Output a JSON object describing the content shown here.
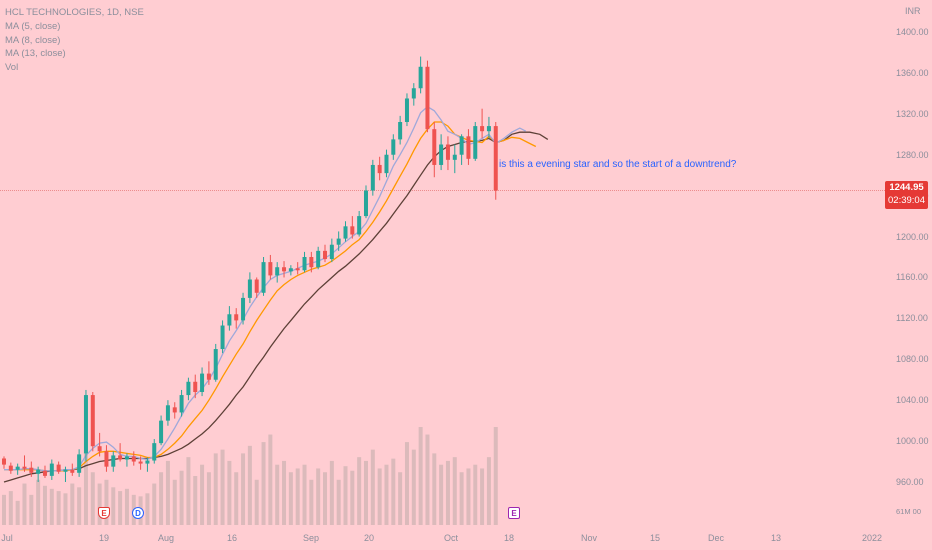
{
  "legend": {
    "symbol": "HCL TECHNOLOGIES, 1D, NSE",
    "ma1": "MA (5, close)",
    "ma2": "MA (8, close)",
    "ma3": "MA (13, close)",
    "vol": "Vol"
  },
  "annotation": "is this a evening star and so the start of a downtrend?",
  "price_axis": {
    "title": "INR",
    "ticks": [
      "1400.00",
      "1360.00",
      "1320.00",
      "1280.00",
      "1240.00",
      "1200.00",
      "1160.00",
      "1120.00",
      "1080.00",
      "1040.00",
      "1000.00",
      "960.00"
    ],
    "last_price": "1244.95",
    "countdown": "02:39:04"
  },
  "volume_axis_label": "61M 00",
  "time_axis": [
    "Jul",
    "19",
    "Aug",
    "16",
    "Sep",
    "20",
    "Oct",
    "18",
    "Nov",
    "15",
    "Dec",
    "13",
    "2022"
  ],
  "events": {
    "e1": "E",
    "d": "D",
    "e2": "E"
  },
  "colors": {
    "background": "#ffcdd2",
    "up_candle": "#26a69a",
    "down_candle": "#ef5350",
    "ma5": "#9fa8da",
    "ma8": "#ff9800",
    "ma13": "#5d4037",
    "volume": "#d7b8b8"
  },
  "chart_data": {
    "type": "candlestick",
    "ylim": [
      940,
      1420
    ],
    "last_price": 1244.95,
    "candles": [
      {
        "o": 983,
        "h": 985,
        "l": 973,
        "c": 977
      },
      {
        "o": 976,
        "h": 979,
        "l": 968,
        "c": 971
      },
      {
        "o": 972,
        "h": 978,
        "l": 967,
        "c": 975
      },
      {
        "o": 975,
        "h": 986,
        "l": 970,
        "c": 973
      },
      {
        "o": 974,
        "h": 980,
        "l": 965,
        "c": 969
      },
      {
        "o": 968,
        "h": 975,
        "l": 960,
        "c": 972
      },
      {
        "o": 971,
        "h": 976,
        "l": 964,
        "c": 966
      },
      {
        "o": 966,
        "h": 982,
        "l": 962,
        "c": 978
      },
      {
        "o": 977,
        "h": 980,
        "l": 968,
        "c": 970
      },
      {
        "o": 970,
        "h": 975,
        "l": 960,
        "c": 972
      },
      {
        "o": 972,
        "h": 978,
        "l": 966,
        "c": 969
      },
      {
        "o": 969,
        "h": 992,
        "l": 965,
        "c": 987
      },
      {
        "o": 988,
        "h": 1050,
        "l": 980,
        "c": 1045
      },
      {
        "o": 1045,
        "h": 1048,
        "l": 990,
        "c": 995
      },
      {
        "o": 995,
        "h": 1008,
        "l": 985,
        "c": 990
      },
      {
        "o": 990,
        "h": 996,
        "l": 970,
        "c": 975
      },
      {
        "o": 975,
        "h": 990,
        "l": 970,
        "c": 986
      },
      {
        "o": 986,
        "h": 998,
        "l": 980,
        "c": 982
      },
      {
        "o": 982,
        "h": 988,
        "l": 975,
        "c": 985
      },
      {
        "o": 985,
        "h": 990,
        "l": 976,
        "c": 980
      },
      {
        "o": 980,
        "h": 985,
        "l": 972,
        "c": 978
      },
      {
        "o": 978,
        "h": 984,
        "l": 970,
        "c": 981
      },
      {
        "o": 981,
        "h": 1002,
        "l": 978,
        "c": 998
      },
      {
        "o": 998,
        "h": 1025,
        "l": 996,
        "c": 1020
      },
      {
        "o": 1020,
        "h": 1040,
        "l": 1015,
        "c": 1035
      },
      {
        "o": 1033,
        "h": 1038,
        "l": 1022,
        "c": 1028
      },
      {
        "o": 1028,
        "h": 1050,
        "l": 1024,
        "c": 1045
      },
      {
        "o": 1045,
        "h": 1062,
        "l": 1040,
        "c": 1058
      },
      {
        "o": 1058,
        "h": 1065,
        "l": 1042,
        "c": 1048
      },
      {
        "o": 1048,
        "h": 1072,
        "l": 1044,
        "c": 1066
      },
      {
        "o": 1066,
        "h": 1078,
        "l": 1055,
        "c": 1060
      },
      {
        "o": 1060,
        "h": 1095,
        "l": 1058,
        "c": 1090
      },
      {
        "o": 1090,
        "h": 1118,
        "l": 1086,
        "c": 1113
      },
      {
        "o": 1113,
        "h": 1132,
        "l": 1108,
        "c": 1124
      },
      {
        "o": 1124,
        "h": 1130,
        "l": 1110,
        "c": 1118
      },
      {
        "o": 1118,
        "h": 1145,
        "l": 1114,
        "c": 1140
      },
      {
        "o": 1140,
        "h": 1165,
        "l": 1135,
        "c": 1158
      },
      {
        "o": 1158,
        "h": 1160,
        "l": 1140,
        "c": 1145
      },
      {
        "o": 1145,
        "h": 1180,
        "l": 1142,
        "c": 1175
      },
      {
        "o": 1175,
        "h": 1182,
        "l": 1158,
        "c": 1162
      },
      {
        "o": 1162,
        "h": 1175,
        "l": 1155,
        "c": 1170
      },
      {
        "o": 1170,
        "h": 1176,
        "l": 1160,
        "c": 1166
      },
      {
        "o": 1166,
        "h": 1172,
        "l": 1162,
        "c": 1169
      },
      {
        "o": 1169,
        "h": 1175,
        "l": 1163,
        "c": 1167
      },
      {
        "o": 1167,
        "h": 1185,
        "l": 1165,
        "c": 1180
      },
      {
        "o": 1180,
        "h": 1185,
        "l": 1165,
        "c": 1170
      },
      {
        "o": 1170,
        "h": 1190,
        "l": 1168,
        "c": 1186
      },
      {
        "o": 1186,
        "h": 1192,
        "l": 1175,
        "c": 1178
      },
      {
        "o": 1178,
        "h": 1198,
        "l": 1175,
        "c": 1192
      },
      {
        "o": 1192,
        "h": 1205,
        "l": 1186,
        "c": 1198
      },
      {
        "o": 1198,
        "h": 1215,
        "l": 1195,
        "c": 1210
      },
      {
        "o": 1210,
        "h": 1220,
        "l": 1198,
        "c": 1202
      },
      {
        "o": 1202,
        "h": 1225,
        "l": 1200,
        "c": 1220
      },
      {
        "o": 1220,
        "h": 1250,
        "l": 1218,
        "c": 1245
      },
      {
        "o": 1245,
        "h": 1275,
        "l": 1240,
        "c": 1270
      },
      {
        "o": 1270,
        "h": 1278,
        "l": 1255,
        "c": 1262
      },
      {
        "o": 1262,
        "h": 1285,
        "l": 1258,
        "c": 1280
      },
      {
        "o": 1280,
        "h": 1300,
        "l": 1275,
        "c": 1295
      },
      {
        "o": 1295,
        "h": 1318,
        "l": 1290,
        "c": 1312
      },
      {
        "o": 1312,
        "h": 1340,
        "l": 1308,
        "c": 1335
      },
      {
        "o": 1335,
        "h": 1350,
        "l": 1328,
        "c": 1345
      },
      {
        "o": 1345,
        "h": 1376,
        "l": 1340,
        "c": 1366
      },
      {
        "o": 1366,
        "h": 1372,
        "l": 1302,
        "c": 1305
      },
      {
        "o": 1305,
        "h": 1312,
        "l": 1258,
        "c": 1270
      },
      {
        "o": 1270,
        "h": 1300,
        "l": 1265,
        "c": 1290
      },
      {
        "o": 1290,
        "h": 1298,
        "l": 1265,
        "c": 1275
      },
      {
        "o": 1275,
        "h": 1290,
        "l": 1262,
        "c": 1280
      },
      {
        "o": 1280,
        "h": 1300,
        "l": 1270,
        "c": 1298
      },
      {
        "o": 1298,
        "h": 1305,
        "l": 1270,
        "c": 1276
      },
      {
        "o": 1276,
        "h": 1312,
        "l": 1274,
        "c": 1308
      },
      {
        "o": 1308,
        "h": 1325,
        "l": 1296,
        "c": 1303
      },
      {
        "o": 1303,
        "h": 1317,
        "l": 1296,
        "c": 1308
      },
      {
        "o": 1308,
        "h": 1312,
        "l": 1236,
        "c": 1245
      }
    ],
    "volume": [
      40,
      45,
      32,
      55,
      40,
      60,
      52,
      48,
      45,
      42,
      55,
      50,
      100,
      70,
      55,
      60,
      50,
      45,
      48,
      40,
      38,
      42,
      55,
      70,
      85,
      60,
      72,
      90,
      65,
      80,
      70,
      95,
      100,
      85,
      70,
      95,
      105,
      60,
      110,
      120,
      80,
      85,
      70,
      75,
      80,
      60,
      75,
      70,
      85,
      60,
      78,
      72,
      90,
      85,
      100,
      75,
      80,
      88,
      70,
      110,
      100,
      130,
      120,
      95,
      80,
      85,
      90,
      70,
      75,
      80,
      75,
      90,
      130
    ],
    "ma5": [
      972,
      972,
      972,
      973,
      973,
      972,
      971,
      971,
      971,
      972,
      972,
      975,
      986,
      993,
      998,
      999,
      994,
      987,
      985,
      985,
      983,
      982,
      985,
      992,
      1002,
      1013,
      1025,
      1037,
      1045,
      1051,
      1060,
      1071,
      1085,
      1098,
      1108,
      1119,
      1131,
      1141,
      1150,
      1158,
      1162,
      1164,
      1166,
      1169,
      1172,
      1174,
      1176,
      1179,
      1183,
      1189,
      1195,
      1200,
      1205,
      1213,
      1226,
      1239,
      1254,
      1269,
      1280,
      1292,
      1306,
      1321,
      1327,
      1323,
      1314,
      1303,
      1300,
      1296,
      1290,
      1292,
      1296,
      1300,
      1291
    ],
    "ma8": [
      972,
      972,
      972,
      972,
      972,
      972,
      971,
      971,
      971,
      971,
      972,
      974,
      980,
      985,
      989,
      990,
      990,
      989,
      988,
      987,
      986,
      984,
      984,
      987,
      992,
      998,
      1005,
      1014,
      1022,
      1030,
      1040,
      1051,
      1063,
      1074,
      1085,
      1095,
      1107,
      1118,
      1128,
      1138,
      1147,
      1153,
      1158,
      1162,
      1165,
      1168,
      1170,
      1172,
      1176,
      1181,
      1186,
      1192,
      1197,
      1205,
      1214,
      1224,
      1235,
      1247,
      1259,
      1271,
      1284,
      1296,
      1305,
      1312,
      1312,
      1308,
      1300,
      1297,
      1294,
      1293,
      1292,
      1298,
      1292
    ],
    "ma13": [
      960,
      962,
      964,
      966,
      968,
      969,
      970,
      971,
      971,
      972,
      972,
      973,
      976,
      978,
      980,
      981,
      982,
      983,
      983,
      983,
      983,
      983,
      984,
      985,
      987,
      990,
      993,
      997,
      1002,
      1007,
      1013,
      1020,
      1028,
      1036,
      1045,
      1053,
      1063,
      1073,
      1082,
      1092,
      1101,
      1110,
      1118,
      1126,
      1134,
      1141,
      1148,
      1154,
      1160,
      1166,
      1171,
      1177,
      1183,
      1190,
      1197,
      1205,
      1213,
      1222,
      1231,
      1240,
      1250,
      1260,
      1270,
      1278,
      1284,
      1288,
      1290,
      1292,
      1293,
      1293,
      1294,
      1296,
      1292
    ]
  }
}
